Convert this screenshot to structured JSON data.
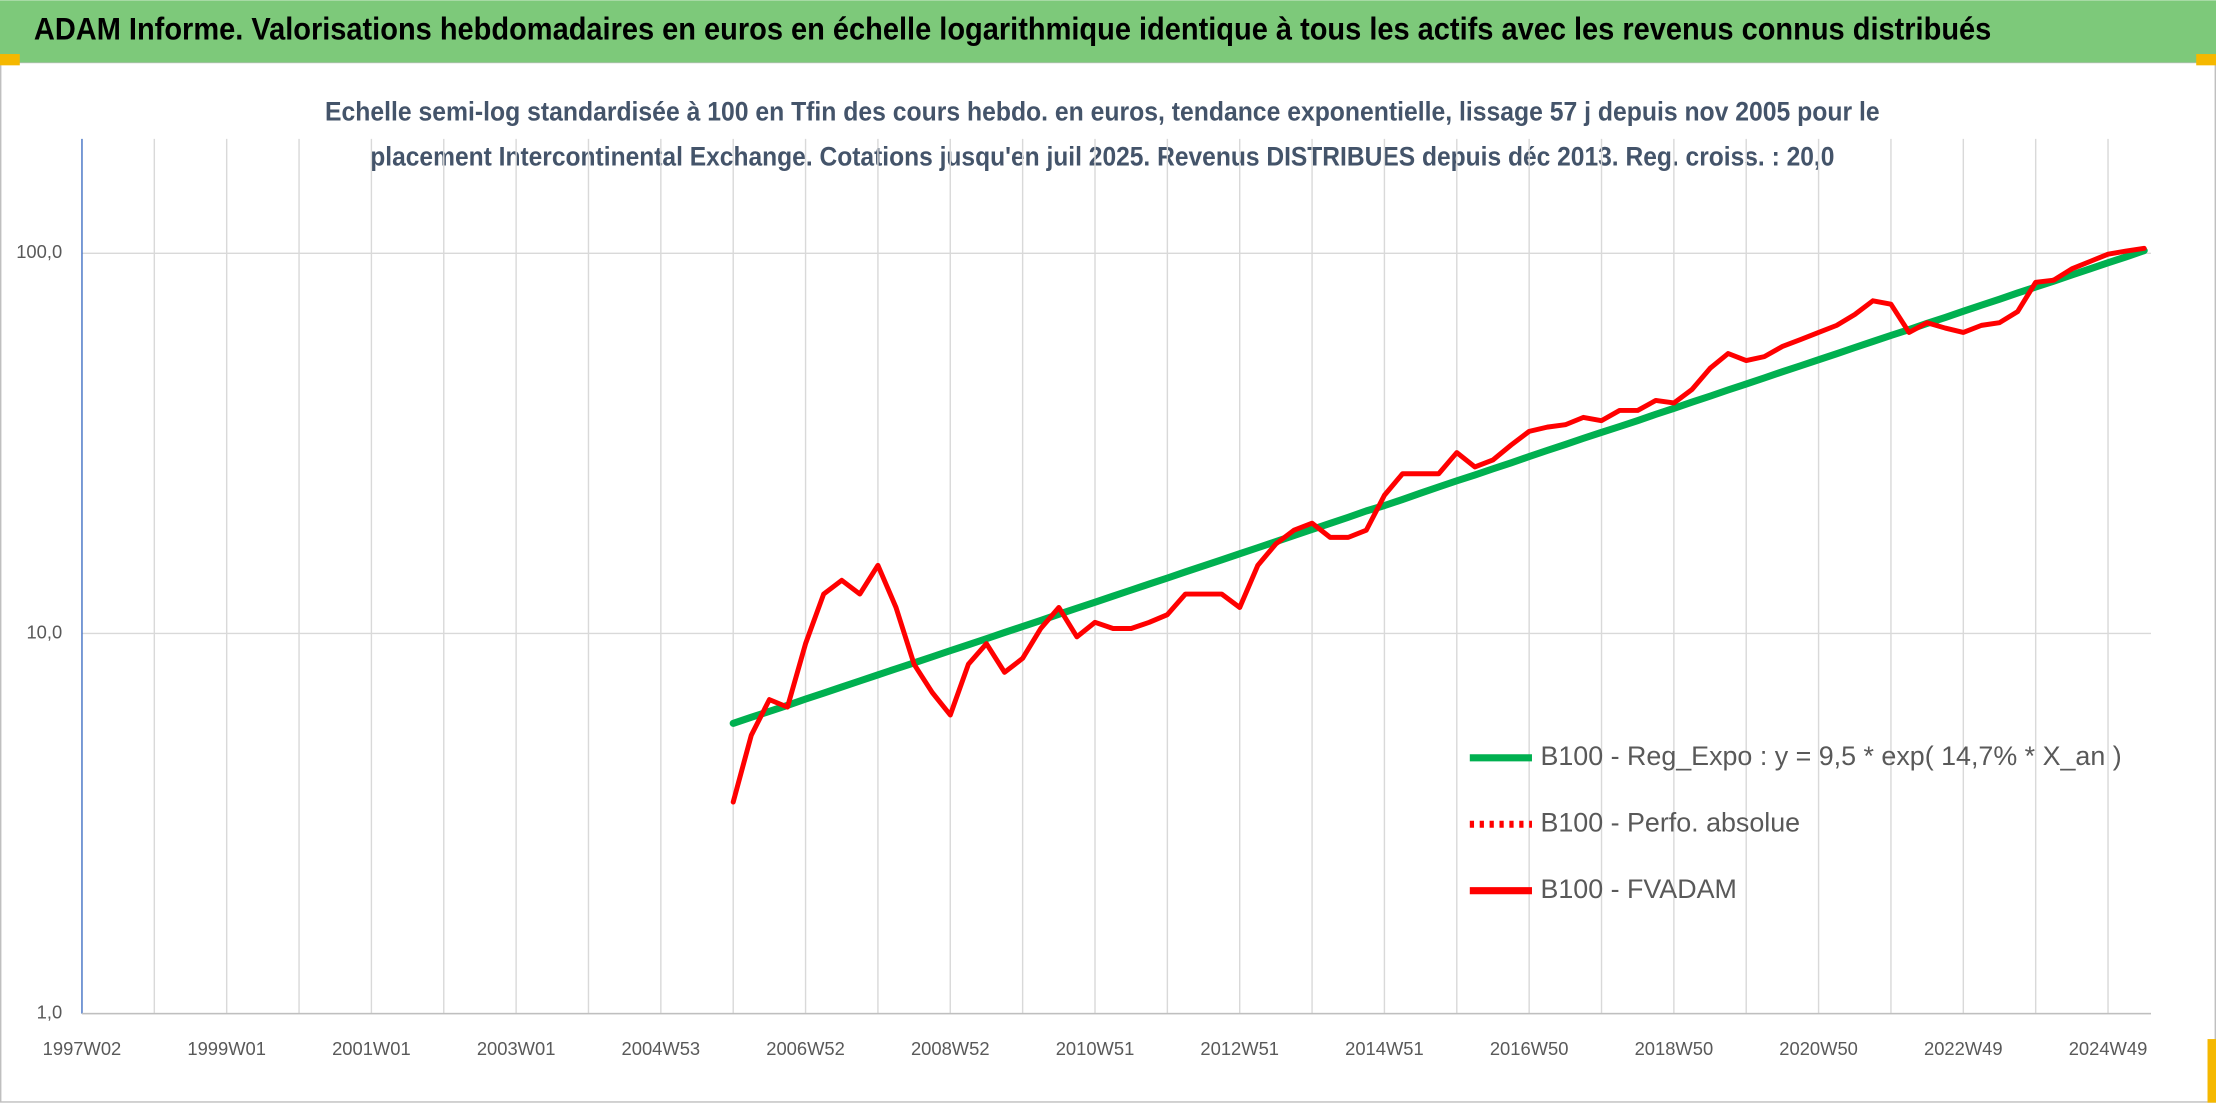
{
  "chart_data": {
    "type": "line",
    "title": "ADAM Informe. Valorisations hebdomadaires en euros en échelle logarithmique identique à tous les actifs avec les revenus connus distribués",
    "subtitle": [
      "Echelle semi-log standardisée à 100 en Tfin des cours hebdo. en euros, tendance exponentielle, lissage 57 j depuis nov 2005 pour le",
      "placement Intercontinental Exchange. Cotations jusqu'en juil 2025. Revenus DISTRIBUES depuis déc 2013. Reg. croiss. : 20,0"
    ],
    "log_scale": true,
    "grid": true,
    "legend": "right",
    "ylim": [
      1,
      200
    ],
    "yticks": [
      {
        "value": 1,
        "label": "1,0"
      },
      {
        "value": 10,
        "label": "10,0"
      },
      {
        "value": 100,
        "label": "100,0"
      }
    ],
    "categories": [
      "1997W02",
      null,
      null,
      null,
      null,
      null,
      null,
      null,
      "1999W01",
      null,
      null,
      null,
      null,
      null,
      null,
      null,
      "2001W01",
      null,
      null,
      null,
      null,
      null,
      null,
      null,
      "2003W01",
      null,
      null,
      null,
      null,
      null,
      null,
      null,
      "2004W53",
      null,
      null,
      null,
      null,
      null,
      null,
      null,
      "2006W52",
      null,
      null,
      null,
      null,
      null,
      null,
      null,
      "2008W52",
      null,
      null,
      null,
      null,
      null,
      null,
      null,
      "2010W51",
      null,
      null,
      null,
      null,
      null,
      null,
      null,
      "2012W51",
      null,
      null,
      null,
      null,
      null,
      null,
      null,
      "2014W51",
      null,
      null,
      null,
      null,
      null,
      null,
      null,
      "2016W50",
      null,
      null,
      null,
      null,
      null,
      null,
      null,
      "2018W50",
      null,
      null,
      null,
      null,
      null,
      null,
      null,
      "2020W50",
      null,
      null,
      null,
      null,
      null,
      null,
      null,
      "2022W49",
      null,
      null,
      null,
      null,
      null,
      null,
      null,
      "2024W49",
      null,
      null
    ],
    "series": [
      {
        "name": "B100 - Reg_Expo : y = 9,5 * exp( 14,7% *  X_an )",
        "color": "#00b050",
        "style": "solid",
        "values": [
          null,
          null,
          null,
          null,
          null,
          null,
          null,
          null,
          null,
          null,
          null,
          null,
          null,
          null,
          null,
          null,
          null,
          null,
          null,
          null,
          null,
          null,
          null,
          null,
          null,
          null,
          null,
          null,
          null,
          null,
          null,
          null,
          null,
          null,
          null,
          null,
          5.8,
          6.02,
          6.24,
          6.47,
          6.72,
          6.97,
          7.23,
          7.5,
          7.78,
          8.07,
          8.37,
          8.68,
          9.01,
          9.34,
          9.69,
          10.06,
          10.43,
          10.82,
          11.23,
          11.65,
          12.08,
          12.53,
          13.0,
          13.49,
          13.99,
          14.52,
          15.06,
          15.62,
          16.21,
          16.81,
          17.44,
          18.09,
          18.77,
          19.47,
          20.2,
          21.0,
          21.7,
          22.5,
          23.4,
          24.3,
          25.2,
          26.1,
          27.1,
          28.1,
          29.2,
          30.3,
          31.4,
          32.6,
          33.8,
          35.0,
          36.3,
          37.7,
          39.1,
          40.6,
          42.1,
          43.7,
          45.3,
          47.0,
          48.8,
          50.6,
          52.5,
          54.4,
          56.5,
          58.6,
          60.8,
          63.0,
          65.4,
          67.8,
          70.4,
          73.0,
          75.7,
          78.6,
          81.5,
          84.5,
          87.7,
          91.0,
          94.4,
          97.9,
          101.6
        ]
      },
      {
        "name": "B100 - Perfo. absolue",
        "color": "#ff0000",
        "style": "dotted",
        "values": [
          null,
          null,
          null,
          null,
          null,
          null,
          null,
          null,
          null,
          null,
          null,
          null,
          null,
          null,
          null,
          null,
          null,
          null,
          null,
          null,
          null,
          null,
          null,
          null,
          null,
          null,
          null,
          null,
          null,
          null,
          null,
          null,
          null,
          null,
          null,
          null,
          null,
          null,
          null,
          null,
          null,
          null,
          null,
          null,
          null,
          null,
          null,
          null,
          null,
          null,
          null,
          null,
          null,
          null,
          null,
          null,
          null,
          null,
          null,
          null,
          null,
          null,
          null,
          null,
          null,
          null,
          null,
          null,
          null,
          null,
          null,
          null,
          null,
          null,
          null,
          null,
          null,
          null,
          null,
          null,
          null,
          null,
          null,
          null,
          null,
          null,
          null,
          null,
          null,
          null,
          null,
          null,
          null,
          null,
          null,
          null,
          null,
          null,
          null,
          null,
          null,
          null,
          null,
          null,
          null,
          null,
          null,
          null,
          null,
          null,
          null,
          null,
          null,
          null,
          null
        ]
      },
      {
        "name": "B100 - FVADAM",
        "color": "#ff0000",
        "style": "solid",
        "values": [
          null,
          null,
          null,
          null,
          null,
          null,
          null,
          null,
          null,
          null,
          null,
          null,
          null,
          null,
          null,
          null,
          null,
          null,
          null,
          null,
          null,
          null,
          null,
          null,
          null,
          null,
          null,
          null,
          null,
          null,
          null,
          null,
          null,
          null,
          null,
          null,
          3.6,
          5.4,
          6.7,
          6.4,
          9.4,
          12.7,
          13.8,
          12.7,
          15.1,
          11.7,
          8.3,
          7.0,
          6.1,
          8.3,
          9.4,
          7.9,
          8.6,
          10.3,
          11.7,
          9.8,
          10.7,
          10.3,
          10.3,
          10.7,
          11.2,
          12.7,
          12.7,
          12.7,
          11.7,
          15.1,
          17.2,
          18.7,
          19.5,
          17.9,
          17.9,
          18.7,
          23.1,
          26.3,
          26.3,
          26.3,
          29.9,
          27.4,
          28.6,
          31.3,
          34.0,
          34.9,
          35.4,
          37.0,
          36.3,
          38.6,
          38.6,
          41.0,
          40.4,
          43.8,
          49.8,
          54.5,
          52.2,
          53.5,
          56.9,
          59.3,
          61.9,
          64.6,
          69.0,
          75.0,
          73.5,
          61.9,
          65.7,
          63.6,
          61.9,
          64.6,
          65.7,
          70.2,
          83.9,
          85.0,
          91.0,
          95.1,
          99.5,
          101.4,
          103.0
        ]
      }
    ]
  }
}
